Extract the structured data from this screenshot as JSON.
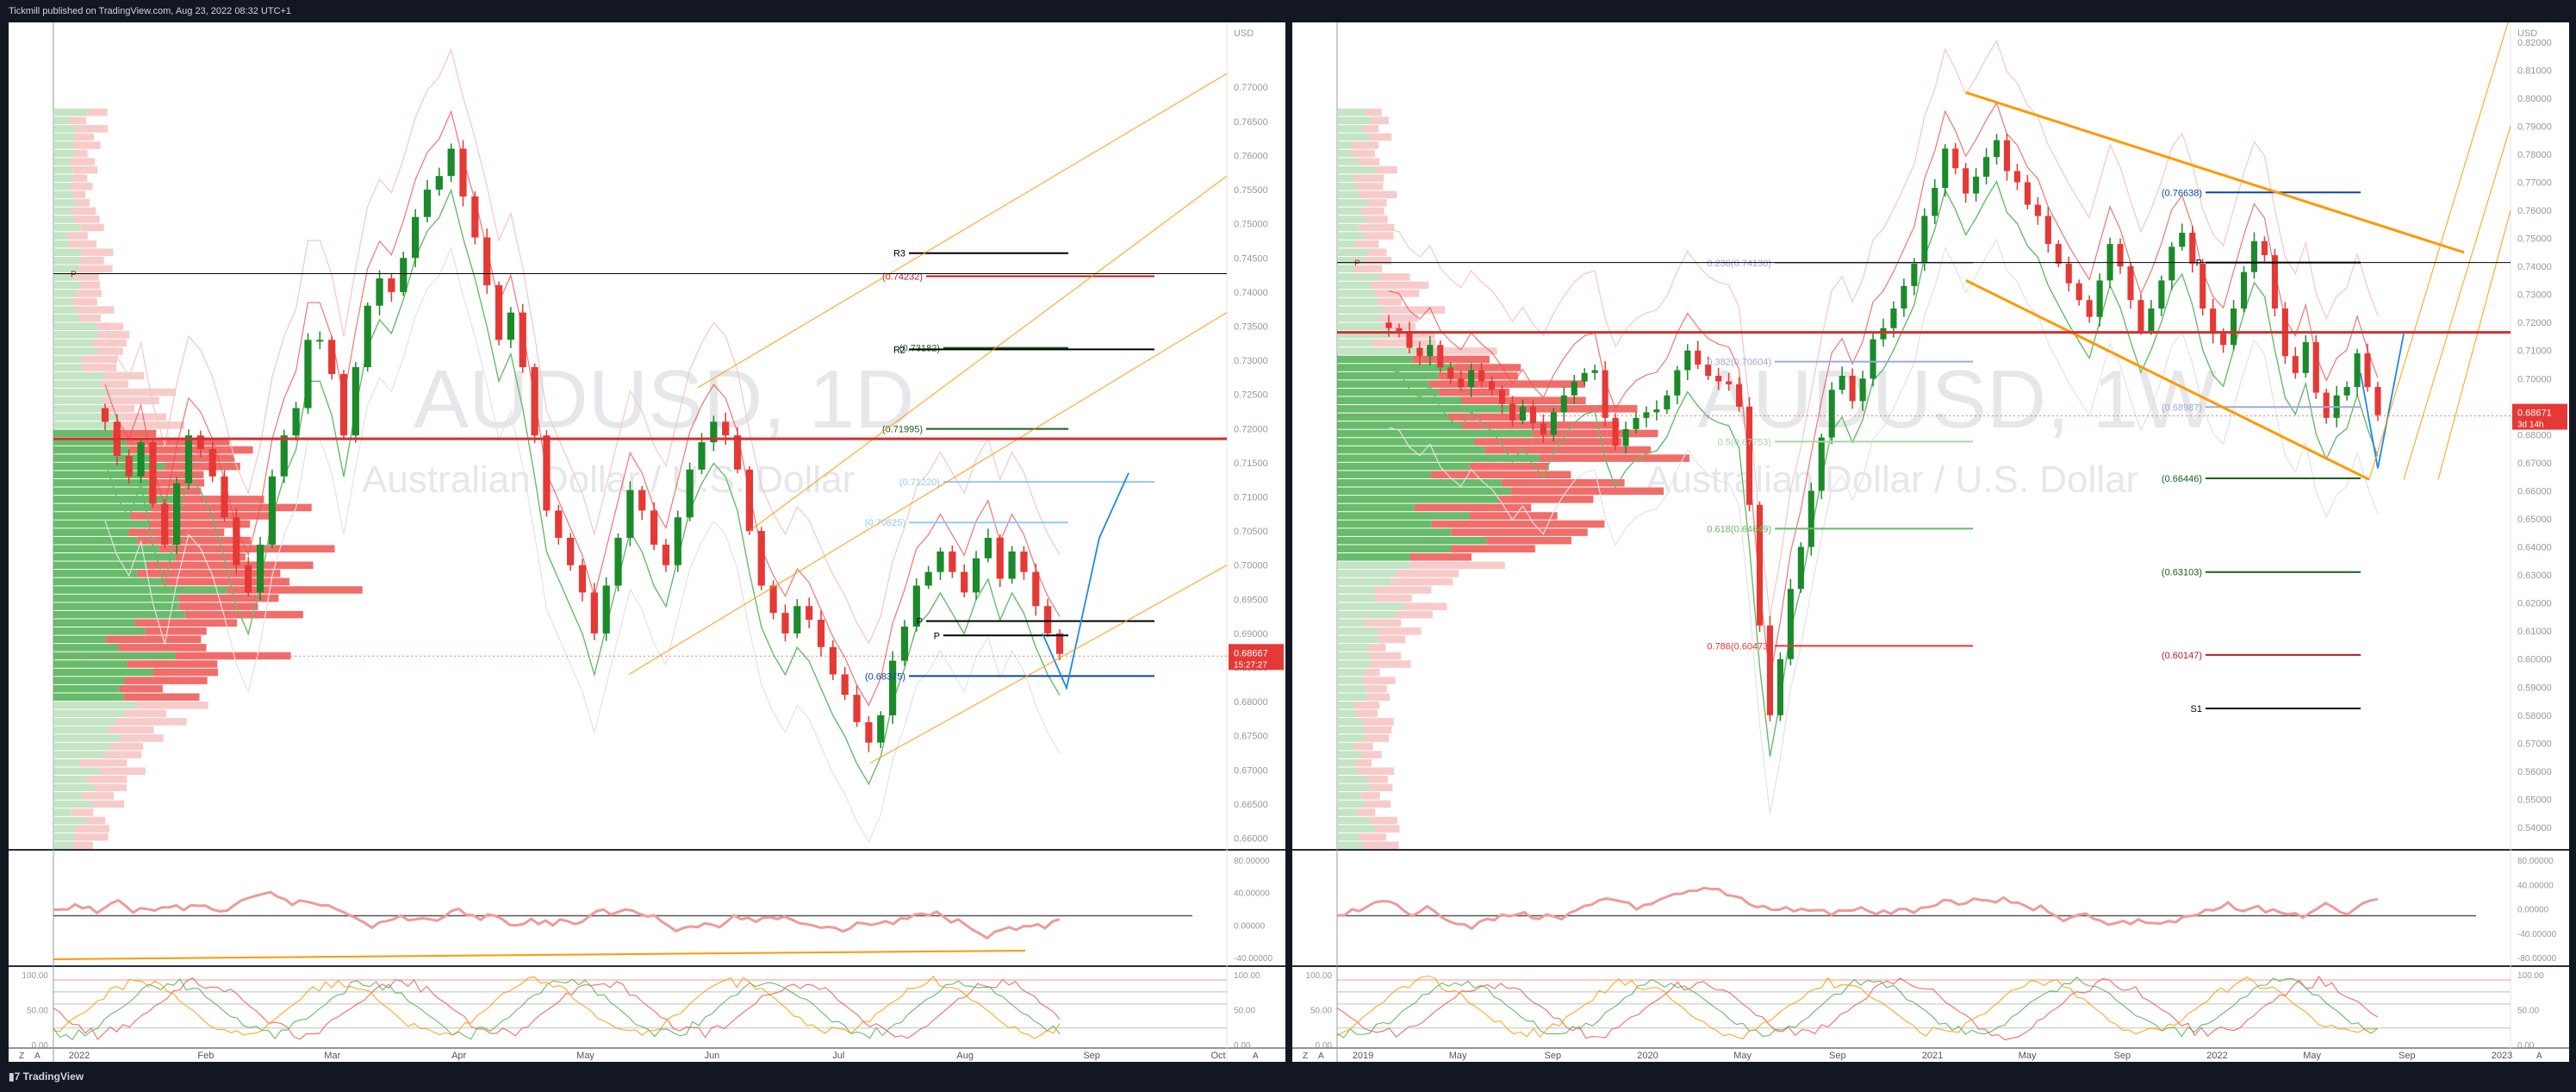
{
  "header": {
    "publisher_line": "Tickmill published on TradingView.com, Aug 23, 2022 08:32 UTC+1"
  },
  "footer": {
    "brand": "TradingView"
  },
  "charts": [
    {
      "id": "left",
      "watermark": "AUDUSD, 1D",
      "watermark_sub": "Australian Dollar / U.S. Dollar",
      "currency": "USD",
      "price_ticks": [
        "0.77000",
        "0.76500",
        "0.76000",
        "0.75500",
        "0.75000",
        "0.74500",
        "0.74000",
        "0.73500",
        "0.73000",
        "0.72500",
        "0.72000",
        "0.71500",
        "0.71000",
        "0.70500",
        "0.70000",
        "0.69500",
        "0.69000",
        "0.68500",
        "0.68000",
        "0.67500",
        "0.67000",
        "0.66500",
        "0.66000"
      ],
      "price_range": [
        0.6583,
        0.7795
      ],
      "last_price": "0.68667",
      "countdown": "15:27:27",
      "levels": [
        {
          "label": "R3",
          "price": 0.7457,
          "color": "#000000"
        },
        {
          "label": "(0.74232)",
          "price": 0.74232,
          "color": "#b71c1c"
        },
        {
          "label": "(0.73182)",
          "price": 0.73182,
          "color": "#1b5e20"
        },
        {
          "label": "R2",
          "price": 0.7316,
          "color": "#000000"
        },
        {
          "label": "(0.71995)",
          "price": 0.71995,
          "color": "#1b5e20"
        },
        {
          "label": "(0.71220)",
          "price": 0.7122,
          "color": "#90caf9"
        },
        {
          "label": "(0.70625)",
          "price": 0.70625,
          "color": "#90caf9"
        },
        {
          "label": "P",
          "price": 0.6918,
          "color": "#000000"
        },
        {
          "label": "P",
          "price": 0.6897,
          "color": "#000000"
        },
        {
          "label": "(0.68375)",
          "price": 0.68375,
          "color": "#0d47a1"
        }
      ],
      "time_labels": [
        "2022",
        "Feb",
        "Mar",
        "Apr",
        "May",
        "Jun",
        "Jul",
        "Aug",
        "Sep",
        "Oct"
      ],
      "rsi_ticks": [
        "80.00000",
        "40.00000",
        "0.00000",
        "-40.00000"
      ],
      "stoch_ticks": [
        "100.00",
        "50.00",
        "0.00"
      ],
      "stoch_ticks_right": [
        "100.00",
        "50.00",
        "0.00"
      ],
      "pivot_marker": "P"
    },
    {
      "id": "right",
      "watermark": "AUDUSD, 1W",
      "watermark_sub": "Australian Dollar / U.S. Dollar",
      "currency": "USD",
      "price_ticks": [
        "0.82000",
        "0.81000",
        "0.80000",
        "0.79000",
        "0.78000",
        "0.77000",
        "0.76000",
        "0.75000",
        "0.74000",
        "0.73000",
        "0.72000",
        "0.71000",
        "0.70000",
        "0.69000",
        "0.68000",
        "0.67000",
        "0.66000",
        "0.65000",
        "0.64000",
        "0.63000",
        "0.62000",
        "0.61000",
        "0.60000",
        "0.59000",
        "0.58000",
        "0.57000",
        "0.56000",
        "0.55000",
        "0.54000"
      ],
      "price_range": [
        0.532,
        0.827
      ],
      "last_price": "0.68671",
      "countdown": "3d 14h",
      "levels": [
        {
          "label": "(0.76638)",
          "price": 0.76638,
          "color": "#0d47a1"
        },
        {
          "label": "P",
          "price": 0.7414,
          "color": "#000000"
        },
        {
          "label": "0.236(0.74130)",
          "price": 0.7413,
          "color": "#9fa8da"
        },
        {
          "label": "0.382(0.70604)",
          "price": 0.70604,
          "color": "#9fa8da"
        },
        {
          "label": "(0.68987)",
          "price": 0.68987,
          "color": "#9fa8da"
        },
        {
          "label": "0.5(0.67753)",
          "price": 0.67753,
          "color": "#a5d6a7"
        },
        {
          "label": "(0.66446)",
          "price": 0.66446,
          "color": "#1b5e20"
        },
        {
          "label": "0.618(0.64649)",
          "price": 0.64649,
          "color": "#66bb6a"
        },
        {
          "label": "(0.63103)",
          "price": 0.63103,
          "color": "#1b5e20"
        },
        {
          "label": "0.786(0.60473)",
          "price": 0.60473,
          "color": "#e53935"
        },
        {
          "label": "(0.60147)",
          "price": 0.60147,
          "color": "#b71c1c"
        },
        {
          "label": "S1",
          "price": 0.5824,
          "color": "#000000"
        }
      ],
      "time_labels": [
        "2019",
        "May",
        "Sep",
        "2020",
        "May",
        "Sep",
        "2021",
        "May",
        "Sep",
        "2022",
        "May",
        "Sep",
        "2023"
      ],
      "rsi_ticks": [
        "80.00000",
        "40.00000",
        "0.00000",
        "-40.00000",
        "-80.00000"
      ],
      "stoch_ticks": [
        "100.00",
        "50.00",
        "0.00"
      ],
      "stoch_ticks_right": [
        "100.00",
        "50.00",
        "0.00"
      ],
      "pivot_marker": "P"
    }
  ],
  "chart_data": [
    {
      "type": "candlestick",
      "title": "AUDUSD, 1D",
      "ylim": [
        0.6583,
        0.7795
      ],
      "close_path": [
        0.721,
        0.716,
        0.713,
        0.718,
        0.709,
        0.703,
        0.712,
        0.719,
        0.717,
        0.713,
        0.707,
        0.7,
        0.696,
        0.703,
        0.713,
        0.719,
        0.723,
        0.733,
        0.733,
        0.728,
        0.719,
        0.729,
        0.738,
        0.742,
        0.74,
        0.745,
        0.751,
        0.755,
        0.757,
        0.761,
        0.754,
        0.748,
        0.741,
        0.733,
        0.737,
        0.729,
        0.719,
        0.708,
        0.704,
        0.7,
        0.696,
        0.69,
        0.697,
        0.704,
        0.711,
        0.708,
        0.703,
        0.7,
        0.707,
        0.714,
        0.718,
        0.721,
        0.719,
        0.714,
        0.705,
        0.697,
        0.693,
        0.69,
        0.694,
        0.692,
        0.688,
        0.684,
        0.681,
        0.677,
        0.674,
        0.678,
        0.686,
        0.691,
        0.697,
        0.699,
        0.702,
        0.699,
        0.696,
        0.701,
        0.704,
        0.698,
        0.702,
        0.699,
        0.694,
        0.69,
        0.687
      ]
    },
    {
      "type": "candlestick",
      "title": "AUDUSD, 1W",
      "ylim": [
        0.532,
        0.827
      ],
      "close_path": [
        0.718,
        0.717,
        0.711,
        0.708,
        0.712,
        0.704,
        0.7,
        0.697,
        0.703,
        0.699,
        0.696,
        0.691,
        0.685,
        0.69,
        0.684,
        0.68,
        0.688,
        0.694,
        0.699,
        0.702,
        0.703,
        0.686,
        0.676,
        0.682,
        0.686,
        0.688,
        0.689,
        0.694,
        0.703,
        0.71,
        0.705,
        0.701,
        0.699,
        0.698,
        0.69,
        0.655,
        0.612,
        0.58,
        0.6,
        0.625,
        0.64,
        0.66,
        0.679,
        0.696,
        0.701,
        0.692,
        0.7,
        0.714,
        0.718,
        0.725,
        0.733,
        0.741,
        0.758,
        0.768,
        0.782,
        0.775,
        0.766,
        0.772,
        0.779,
        0.785,
        0.774,
        0.77,
        0.762,
        0.758,
        0.748,
        0.741,
        0.734,
        0.728,
        0.722,
        0.735,
        0.748,
        0.74,
        0.728,
        0.717,
        0.725,
        0.735,
        0.747,
        0.752,
        0.741,
        0.725,
        0.716,
        0.712,
        0.725,
        0.738,
        0.749,
        0.744,
        0.725,
        0.708,
        0.702,
        0.713,
        0.695,
        0.686,
        0.694,
        0.697,
        0.709,
        0.697,
        0.687
      ]
    }
  ]
}
